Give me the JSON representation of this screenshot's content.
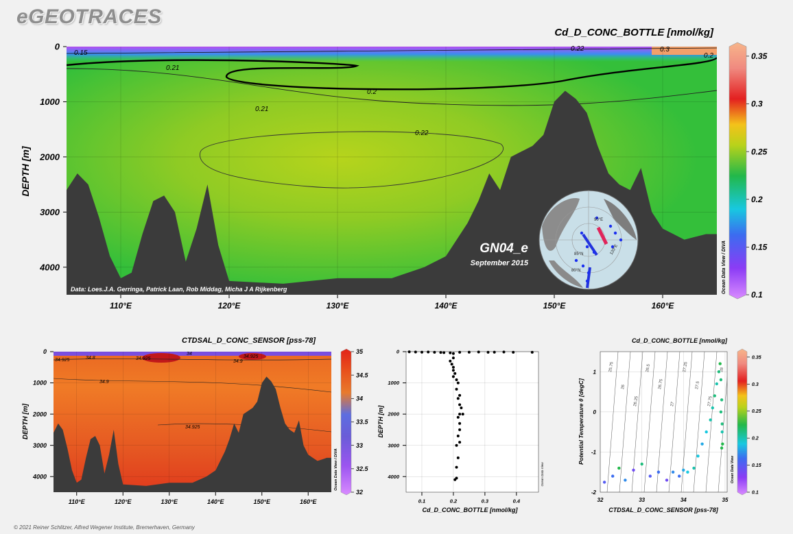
{
  "brand": "eGEOTRACES",
  "footer": "© 2021 Reiner Schlitzer, Alfred Wegener Institute, Bremerhaven, Germany",
  "colors": {
    "land": "#3b3b3b",
    "background": "#f1f1f1"
  },
  "chart_data": [
    {
      "id": "main-section",
      "type": "heatmap",
      "title": "Cd_D_CONC_BOTTLE [nmol/kg]",
      "xlabel": "",
      "ylabel": "DEPTH [m]",
      "x_ticks": [
        "110°E",
        "120°E",
        "130°E",
        "140°E",
        "150°E",
        "160°E"
      ],
      "y_ticks": [
        "0",
        "1000",
        "2000",
        "3000",
        "4000"
      ],
      "xlim": [
        105,
        165
      ],
      "ylim": [
        0,
        4500
      ],
      "colorbar": {
        "label": "Ocean Data View / DIVA",
        "ticks": [
          "0.1",
          "0.15",
          "0.2",
          "0.25",
          "0.3",
          "0.35"
        ],
        "range": [
          0.1,
          0.36
        ]
      },
      "contour_labels": [
        "0.15",
        "0.21",
        "0.2",
        "0.21",
        "0.22",
        "0.22",
        "0.3",
        "0.2"
      ],
      "section_name": "GN04_e",
      "date": "September 2015",
      "credit": "Data: Loes.J.A. Gerringa, Patrick Laan, Rob Middag, Micha J A Rijkenberg",
      "map_labels": [
        "85°N",
        "80°N",
        "90°E",
        "120°E"
      ],
      "bathymetry": {
        "lon": [
          105,
          106,
          107,
          108,
          109,
          110,
          111,
          112,
          113,
          114,
          115,
          116,
          117,
          118,
          119,
          120,
          125,
          130,
          135,
          138,
          140,
          142,
          143,
          144,
          145,
          146,
          147,
          148,
          149,
          150,
          151,
          152,
          153,
          154,
          155,
          156,
          157,
          158,
          159,
          160,
          161,
          162,
          163,
          164,
          165
        ],
        "depth": [
          2600,
          2300,
          2500,
          3100,
          3800,
          4200,
          4100,
          3400,
          2800,
          2700,
          3000,
          3900,
          3300,
          2500,
          3600,
          4250,
          4300,
          4200,
          4200,
          4000,
          3800,
          3200,
          2800,
          2300,
          2600,
          2000,
          1900,
          1800,
          1600,
          1000,
          800,
          950,
          1200,
          1800,
          2300,
          2500,
          2600,
          2200,
          3000,
          3300,
          3400,
          3500,
          3450,
          3400,
          3400
        ]
      }
    },
    {
      "id": "salinity-section",
      "type": "heatmap",
      "title": "CTDSAL_D_CONC_SENSOR [pss-78]",
      "xlabel": "",
      "ylabel": "DEPTH [m]",
      "x_ticks": [
        "110°E",
        "120°E",
        "130°E",
        "140°E",
        "150°E",
        "160°E"
      ],
      "y_ticks": [
        "0",
        "1000",
        "2000",
        "3000",
        "4000"
      ],
      "xlim": [
        105,
        165
      ],
      "ylim": [
        0,
        4500
      ],
      "colorbar": {
        "label": "Ocean Data View / DIVA",
        "ticks": [
          "32",
          "32.5",
          "33",
          "33.5",
          "34",
          "34.5",
          "35"
        ],
        "range": [
          32,
          35
        ]
      },
      "contour_labels": [
        "34.925",
        "34.8",
        "34.925",
        "34",
        "34.925",
        "34.9",
        "34.9",
        "34.925"
      ]
    },
    {
      "id": "profile-plot",
      "type": "scatter",
      "title": "",
      "xlabel": "Cd_D_CONC_BOTTLE [nmol/kg]",
      "ylabel": "DEPTH [m]",
      "x_ticks": [
        "0.1",
        "0.2",
        "0.3",
        "0.4"
      ],
      "y_ticks": [
        "0",
        "1000",
        "2000",
        "3000",
        "4000"
      ],
      "xlim": [
        0.05,
        0.47
      ],
      "ylim": [
        0,
        4500
      ],
      "side_label": "Ocean Data View",
      "points": [
        [
          0.06,
          5
        ],
        [
          0.08,
          10
        ],
        [
          0.1,
          15
        ],
        [
          0.12,
          10
        ],
        [
          0.14,
          20
        ],
        [
          0.16,
          25
        ],
        [
          0.17,
          30
        ],
        [
          0.19,
          40
        ],
        [
          0.2,
          60
        ],
        [
          0.22,
          20
        ],
        [
          0.25,
          15
        ],
        [
          0.28,
          10
        ],
        [
          0.31,
          20
        ],
        [
          0.33,
          15
        ],
        [
          0.36,
          10
        ],
        [
          0.39,
          20
        ],
        [
          0.45,
          20
        ],
        [
          0.2,
          200
        ],
        [
          0.19,
          300
        ],
        [
          0.195,
          400
        ],
        [
          0.2,
          500
        ],
        [
          0.2,
          600
        ],
        [
          0.205,
          700
        ],
        [
          0.2,
          800
        ],
        [
          0.21,
          900
        ],
        [
          0.215,
          1000
        ],
        [
          0.21,
          1200
        ],
        [
          0.22,
          1400
        ],
        [
          0.215,
          1500
        ],
        [
          0.22,
          1700
        ],
        [
          0.225,
          1800
        ],
        [
          0.22,
          2000
        ],
        [
          0.23,
          2000
        ],
        [
          0.215,
          2100
        ],
        [
          0.22,
          2300
        ],
        [
          0.22,
          2500
        ],
        [
          0.215,
          2700
        ],
        [
          0.22,
          2900
        ],
        [
          0.21,
          3000
        ],
        [
          0.215,
          3400
        ],
        [
          0.21,
          3700
        ],
        [
          0.21,
          4050
        ],
        [
          0.205,
          4100
        ]
      ]
    },
    {
      "id": "ts-plot",
      "type": "scatter",
      "title": "Cd_D_CONC_BOTTLE [nmol/kg]",
      "xlabel": "CTDSAL_D_CONC_SENSOR [pss-78]",
      "ylabel": "Potential Temperature θ [degC]",
      "x_ticks": [
        "32",
        "33",
        "34",
        "35"
      ],
      "y_ticks": [
        "-2",
        "-1",
        "0",
        "1"
      ],
      "xlim": [
        32,
        35.05
      ],
      "ylim": [
        -2,
        1.5
      ],
      "colorbar": {
        "label": "Ocean Data View",
        "ticks": [
          "0.1",
          "0.15",
          "0.2",
          "0.25",
          "0.3",
          "0.35"
        ],
        "range": [
          0.1,
          0.36
        ]
      },
      "isopycnal_labels": [
        "25.75",
        "26",
        "26.25",
        "26.5",
        "26.75",
        "27",
        "27.25",
        "27.5",
        "27.75",
        "28"
      ],
      "points": [
        [
          32.1,
          -1.75,
          0.15
        ],
        [
          32.3,
          -1.6,
          0.16
        ],
        [
          32.45,
          -1.4,
          0.22
        ],
        [
          32.6,
          -1.7,
          0.17
        ],
        [
          32.8,
          -1.45,
          0.14
        ],
        [
          33.0,
          -1.3,
          0.21
        ],
        [
          33.2,
          -1.6,
          0.15
        ],
        [
          33.4,
          -1.5,
          0.16
        ],
        [
          33.6,
          -1.7,
          0.14
        ],
        [
          33.75,
          -1.5,
          0.17
        ],
        [
          33.9,
          -1.6,
          0.16
        ],
        [
          34.0,
          -1.45,
          0.18
        ],
        [
          34.1,
          -1.5,
          0.19
        ],
        [
          34.25,
          -1.4,
          0.2
        ],
        [
          34.35,
          -1.1,
          0.19
        ],
        [
          34.45,
          -0.8,
          0.18
        ],
        [
          34.55,
          -0.5,
          0.19
        ],
        [
          34.65,
          -0.2,
          0.2
        ],
        [
          34.7,
          0.1,
          0.2
        ],
        [
          34.75,
          0.4,
          0.21
        ],
        [
          34.8,
          0.7,
          0.2
        ],
        [
          34.85,
          1.0,
          0.21
        ],
        [
          34.88,
          1.2,
          0.22
        ],
        [
          34.9,
          0.8,
          0.21
        ],
        [
          34.92,
          0.3,
          0.21
        ],
        [
          34.93,
          -0.3,
          0.21
        ],
        [
          34.94,
          -0.8,
          0.22
        ],
        [
          34.93,
          -0.5,
          0.2
        ],
        [
          34.9,
          0.0,
          0.21
        ],
        [
          34.92,
          -0.9,
          0.22
        ]
      ]
    }
  ]
}
